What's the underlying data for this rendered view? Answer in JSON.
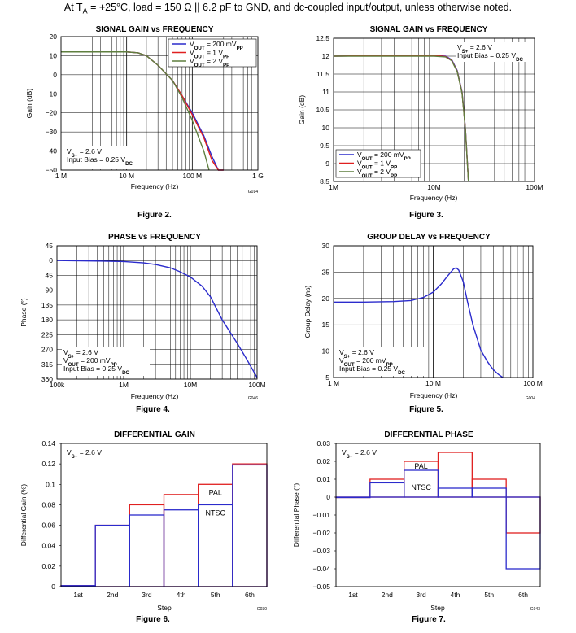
{
  "header": {
    "prefix": "At T",
    "prefix_sub": "A",
    "rest": " = +25°C, load = 150 Ω || 6.2 pF to GND, and dc-coupled input/output, unless otherwise noted."
  },
  "colors": {
    "blue": "#2b2bcc",
    "red": "#e02020",
    "green": "#5f7f3f",
    "grid": "#000000",
    "frame": "#000000"
  },
  "chart_data": [
    {
      "id": "fig2",
      "type": "line",
      "x_scale": "log",
      "title": "SIGNAL GAIN vs FREQUENCY",
      "caption": "Figure 2.",
      "code": "G014",
      "xlabel": "Frequency (Hz)",
      "ylabel": "Gain (dB)",
      "xlim": [
        1000000,
        1000000000
      ],
      "ylim": [
        -50,
        20
      ],
      "grid": true,
      "x_ticks": [
        {
          "v": 1000000,
          "label": "1 M"
        },
        {
          "v": 10000000,
          "label": "10 M"
        },
        {
          "v": 100000000,
          "label": "100 M"
        },
        {
          "v": 1000000000,
          "label": "1 G"
        }
      ],
      "y_ticks": [
        {
          "v": 20,
          "label": "20"
        },
        {
          "v": 10,
          "label": "10"
        },
        {
          "v": 0,
          "label": "0"
        },
        {
          "v": -10,
          "label": "−10"
        },
        {
          "v": -20,
          "label": "−20"
        },
        {
          "v": -30,
          "label": "−30"
        },
        {
          "v": -40,
          "label": "−40"
        },
        {
          "v": -50,
          "label": "−50"
        }
      ],
      "legend": {
        "position": "top-right",
        "entries": [
          {
            "main": "V",
            "sub": "OUT",
            "rest": " = 200 mV",
            "sub2": "PP",
            "color": "blue"
          },
          {
            "main": "V",
            "sub": "OUT",
            "rest": " = 1 V",
            "sub2": "PP",
            "color": "red"
          },
          {
            "main": "V",
            "sub": "OUT",
            "rest": " = 2 V",
            "sub2": "PP",
            "color": "green"
          }
        ]
      },
      "annotation": {
        "position": "bottom-left",
        "lines": [
          {
            "main": "V",
            "sub": "S+",
            "rest": " = 2.6 V"
          },
          {
            "main": "Input Bias = 0.25 V",
            "sub": "DC",
            "rest": ""
          }
        ]
      },
      "series": [
        {
          "name": "VOUT = 200 mVPP",
          "color": "blue",
          "x": [
            1000000,
            5000000,
            10000000,
            15000000,
            20000000,
            30000000,
            50000000,
            70000000,
            100000000,
            150000000,
            200000000,
            250000000,
            300000000
          ],
          "y": [
            12,
            12,
            12,
            11.5,
            10,
            5,
            -3,
            -11,
            -20,
            -32,
            -43,
            -50,
            -50
          ]
        },
        {
          "name": "VOUT = 1 VPP",
          "color": "red",
          "x": [
            1000000,
            5000000,
            10000000,
            15000000,
            20000000,
            30000000,
            50000000,
            70000000,
            100000000,
            150000000,
            200000000,
            250000000,
            300000000
          ],
          "y": [
            12,
            12,
            12,
            11.5,
            10,
            5,
            -3,
            -11,
            -21,
            -33,
            -45,
            -50,
            -50
          ]
        },
        {
          "name": "VOUT = 2 VPP",
          "color": "green",
          "x": [
            1000000,
            5000000,
            10000000,
            15000000,
            20000000,
            30000000,
            50000000,
            70000000,
            100000000,
            150000000,
            180000000
          ],
          "y": [
            12,
            12,
            12,
            11.5,
            10,
            5,
            -3,
            -12,
            -24,
            -40,
            -50
          ]
        }
      ]
    },
    {
      "id": "fig3",
      "type": "line",
      "x_scale": "log",
      "title": "SIGNAL GAIN vs FREQUENCY",
      "caption": "Figure 3.",
      "code": "",
      "xlabel": "Frequency (Hz)",
      "ylabel": "Gain (dB)",
      "xlim": [
        1000000,
        100000000
      ],
      "ylim": [
        8.5,
        12.5
      ],
      "grid": true,
      "x_ticks": [
        {
          "v": 1000000,
          "label": "1M"
        },
        {
          "v": 10000000,
          "label": "10M"
        },
        {
          "v": 100000000,
          "label": "100M"
        }
      ],
      "y_ticks": [
        {
          "v": 12.5,
          "label": "12.5"
        },
        {
          "v": 12,
          "label": "12"
        },
        {
          "v": 11.5,
          "label": "11.5"
        },
        {
          "v": 11,
          "label": "11"
        },
        {
          "v": 10.5,
          "label": "10.5"
        },
        {
          "v": 10,
          "label": "10"
        },
        {
          "v": 9.5,
          "label": "9.5"
        },
        {
          "v": 9,
          "label": "9"
        },
        {
          "v": 8.5,
          "label": "8.5"
        }
      ],
      "legend": {
        "position": "bottom-left",
        "entries": [
          {
            "main": "V",
            "sub": "OUT",
            "rest": " = 200 mV",
            "sub2": "PP",
            "color": "blue"
          },
          {
            "main": "V",
            "sub": "OUT",
            "rest": " = 1 V",
            "sub2": "PP",
            "color": "red"
          },
          {
            "main": "V",
            "sub": "OUT",
            "rest": " = 2 V",
            "sub2": "PP",
            "color": "green"
          }
        ]
      },
      "annotation": {
        "position": "top-right",
        "lines": [
          {
            "main": "V",
            "sub": "S+",
            "rest": " = 2.6 V"
          },
          {
            "main": "Input Bias = 0.25 V",
            "sub": "DC",
            "rest": ""
          }
        ]
      },
      "series": [
        {
          "name": "VOUT = 200 mVPP",
          "color": "blue",
          "x": [
            1000000,
            2000000,
            5000000,
            10000000,
            13000000,
            15000000,
            17000000,
            19000000,
            20500000,
            21500000,
            22000000
          ],
          "y": [
            12,
            12.01,
            12.02,
            12.02,
            12.0,
            11.9,
            11.6,
            11,
            10,
            9,
            8.5
          ]
        },
        {
          "name": "VOUT = 1 VPP",
          "color": "red",
          "x": [
            1000000,
            2000000,
            5000000,
            10000000,
            13000000,
            15000000,
            17000000,
            19000000,
            20500000,
            21500000,
            22000000
          ],
          "y": [
            12,
            12.01,
            12.02,
            12.02,
            11.99,
            11.88,
            11.58,
            10.98,
            9.98,
            8.98,
            8.5
          ]
        },
        {
          "name": "VOUT = 2 VPP",
          "color": "green",
          "x": [
            1000000,
            2000000,
            5000000,
            10000000,
            13000000,
            15000000,
            17000000,
            19000000,
            20500000,
            21500000,
            22000000
          ],
          "y": [
            12,
            12.0,
            12.0,
            12.0,
            11.98,
            11.87,
            11.57,
            10.97,
            9.97,
            8.97,
            8.5
          ]
        }
      ]
    },
    {
      "id": "fig4",
      "type": "line",
      "x_scale": "log",
      "title": "PHASE vs FREQUENCY",
      "caption": "Figure 4.",
      "code": "G046",
      "xlabel": "Frequency (Hz)",
      "ylabel": "Phase (°)",
      "xlim": [
        100000,
        100000000
      ],
      "ylim": [
        -45,
        360
      ],
      "y_inverted": true,
      "grid": true,
      "x_ticks": [
        {
          "v": 100000,
          "label": "100k"
        },
        {
          "v": 1000000,
          "label": "1M"
        },
        {
          "v": 10000000,
          "label": "10M"
        },
        {
          "v": 100000000,
          "label": "100M"
        }
      ],
      "y_ticks": [
        {
          "v": -45,
          "label": "45"
        },
        {
          "v": 0,
          "label": "0"
        },
        {
          "v": 45,
          "label": "45"
        },
        {
          "v": 90,
          "label": "90"
        },
        {
          "v": 135,
          "label": "135"
        },
        {
          "v": 180,
          "label": "180"
        },
        {
          "v": 225,
          "label": "225"
        },
        {
          "v": 270,
          "label": "270"
        },
        {
          "v": 315,
          "label": "315"
        },
        {
          "v": 360,
          "label": "360"
        }
      ],
      "annotation": {
        "position": "bottom-left",
        "lines": [
          {
            "main": "V",
            "sub": "S+",
            "rest": " = 2.6 V"
          },
          {
            "main": "V",
            "sub": "OUT",
            "rest": " = 200 mV",
            "sub2": "PP"
          },
          {
            "main": "Input Bias = 0.25 V",
            "sub": "DC",
            "rest": ""
          }
        ]
      },
      "series": [
        {
          "name": "",
          "color": "blue",
          "x": [
            100000,
            300000,
            1000000,
            2000000,
            3000000,
            5000000,
            7000000,
            10000000,
            15000000,
            20000000,
            30000000,
            50000000,
            70000000,
            100000000
          ],
          "y": [
            0,
            1,
            3,
            7,
            12,
            22,
            34,
            50,
            78,
            110,
            180,
            250,
            300,
            355
          ]
        }
      ]
    },
    {
      "id": "fig5",
      "type": "line",
      "x_scale": "log",
      "title": "GROUP DELAY vs FREQUENCY",
      "caption": "Figure 5.",
      "code": "G004",
      "xlabel": "Frequency (Hz)",
      "ylabel": "Group Delay (ns)",
      "xlim": [
        1000000,
        100000000
      ],
      "ylim": [
        5,
        30
      ],
      "grid": true,
      "x_ticks": [
        {
          "v": 1000000,
          "label": "1 M"
        },
        {
          "v": 10000000,
          "label": "10 M"
        },
        {
          "v": 100000000,
          "label": "100 M"
        }
      ],
      "y_ticks": [
        {
          "v": 30,
          "label": "30"
        },
        {
          "v": 25,
          "label": "25"
        },
        {
          "v": 20,
          "label": "20"
        },
        {
          "v": 15,
          "label": "15"
        },
        {
          "v": 10,
          "label": "10"
        },
        {
          "v": 5,
          "label": "5"
        }
      ],
      "annotation": {
        "position": "bottom-left",
        "lines": [
          {
            "main": "V",
            "sub": "S+",
            "rest": " = 2.6 V"
          },
          {
            "main": "V",
            "sub": "OUT",
            "rest": " = 200 mV",
            "sub2": "PP"
          },
          {
            "main": "Input Bias = 0.25 V",
            "sub": "DC",
            "rest": ""
          }
        ]
      },
      "series": [
        {
          "name": "",
          "color": "blue",
          "x": [
            1000000,
            2000000,
            4000000,
            6000000,
            8000000,
            10000000,
            12000000,
            14000000,
            16000000,
            17000000,
            18000000,
            20000000,
            22000000,
            25000000,
            30000000,
            35000000,
            40000000,
            45000000,
            50000000
          ],
          "y": [
            19.3,
            19.3,
            19.4,
            19.6,
            20.2,
            21.2,
            22.7,
            24.3,
            25.6,
            25.8,
            25.4,
            23.2,
            19.5,
            15,
            10.2,
            8,
            6.5,
            5.6,
            5
          ]
        }
      ]
    },
    {
      "id": "fig6",
      "type": "bar",
      "title": "DIFFERENTIAL GAIN",
      "caption": "Figure 6.",
      "code": "G030",
      "xlabel": "Step",
      "ylabel": "Differential Gain (%)",
      "categories": [
        "1st",
        "2nd",
        "3rd",
        "4th",
        "5th",
        "6th"
      ],
      "ylim": [
        0,
        0.14
      ],
      "y_ticks": [
        {
          "v": 0.14,
          "label": "0.14"
        },
        {
          "v": 0.12,
          "label": "0.12"
        },
        {
          "v": 0.1,
          "label": "0.1"
        },
        {
          "v": 0.08,
          "label": "0.08"
        },
        {
          "v": 0.06,
          "label": "0.06"
        },
        {
          "v": 0.04,
          "label": "0.04"
        },
        {
          "v": 0.02,
          "label": "0.02"
        },
        {
          "v": 0,
          "label": "0"
        }
      ],
      "annotation": {
        "position": "top-left",
        "lines": [
          {
            "main": "V",
            "sub": "S+",
            "rest": " = 2.6 V"
          }
        ]
      },
      "series": [
        {
          "name": "PAL",
          "color": "red",
          "values": [
            0.001,
            0.06,
            0.08,
            0.09,
            0.1,
            0.12
          ]
        },
        {
          "name": "NTSC",
          "color": "blue",
          "values": [
            0.001,
            0.06,
            0.07,
            0.075,
            0.08,
            0.119
          ]
        }
      ]
    },
    {
      "id": "fig7",
      "type": "bar",
      "title": "DIFFERENTIAL PHASE",
      "caption": "Figure 7.",
      "code": "G043",
      "xlabel": "Step",
      "ylabel": "Differential Phase (°)",
      "categories": [
        "1st",
        "2nd",
        "3rd",
        "4th",
        "5th",
        "6th"
      ],
      "ylim": [
        -0.05,
        0.03
      ],
      "y_ticks": [
        {
          "v": 0.03,
          "label": "0.03"
        },
        {
          "v": 0.02,
          "label": "0.02"
        },
        {
          "v": 0.01,
          "label": "0.01"
        },
        {
          "v": 0,
          "label": "0"
        },
        {
          "v": -0.01,
          "label": "−0.01"
        },
        {
          "v": -0.02,
          "label": "−0.02"
        },
        {
          "v": -0.03,
          "label": "−0.03"
        },
        {
          "v": -0.04,
          "label": "−0.04"
        },
        {
          "v": -0.05,
          "label": "−0.05"
        }
      ],
      "annotation": {
        "position": "top-left",
        "lines": [
          {
            "main": "V",
            "sub": "S+",
            "rest": " = 2.6 V"
          }
        ]
      },
      "series": [
        {
          "name": "PAL",
          "color": "red",
          "values": [
            0,
            0.01,
            0.02,
            0.025,
            0.01,
            -0.02
          ]
        },
        {
          "name": "NTSC",
          "color": "blue",
          "values": [
            0,
            0.008,
            0.015,
            0.005,
            0.005,
            -0.04
          ]
        }
      ]
    }
  ]
}
